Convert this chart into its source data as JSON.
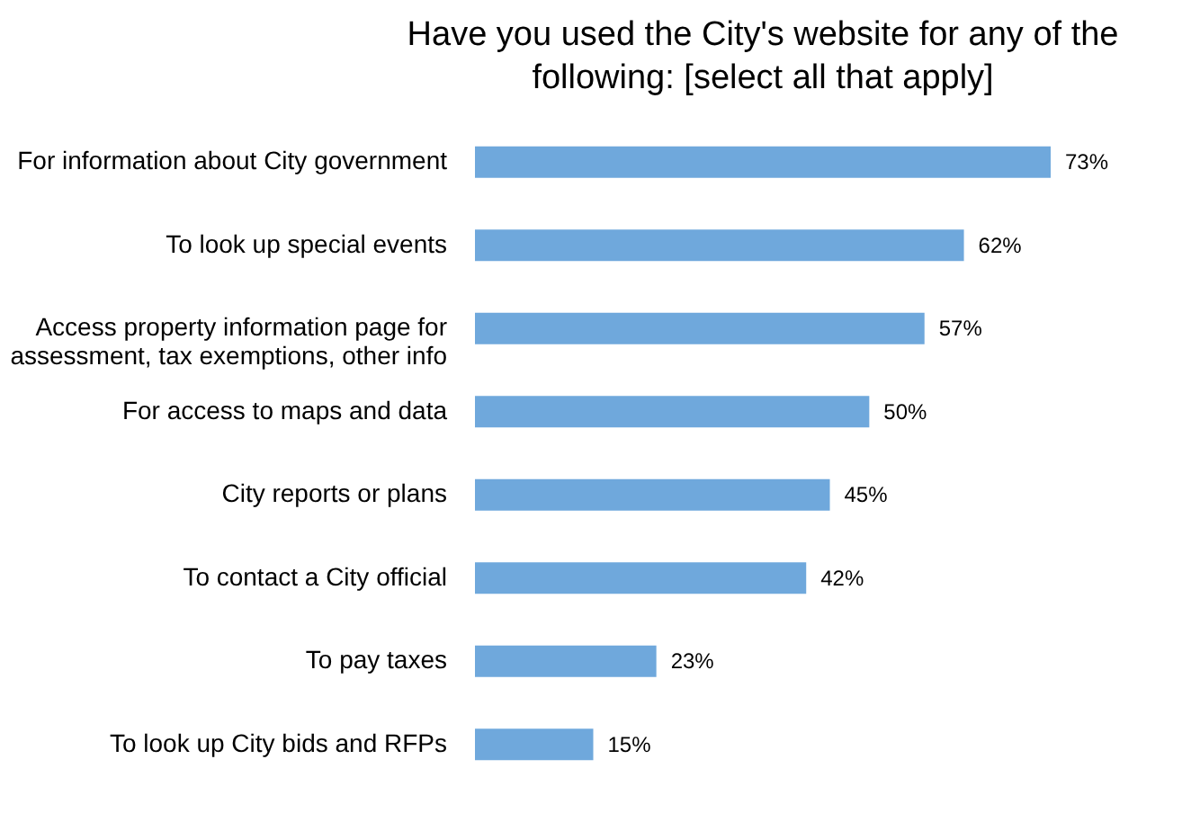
{
  "chart_data": {
    "type": "bar",
    "orientation": "horizontal",
    "title": "Have you used the City's website for any of the following: [select all that apply]",
    "categories": [
      "For information about City government",
      "To look up special events",
      "Access property information page for assessment, tax exemptions, other info",
      "For access to maps and data",
      "City reports or plans",
      "To contact a City official",
      "To pay taxes",
      "To look up City bids and RFPs"
    ],
    "values": [
      73,
      62,
      57,
      50,
      45,
      42,
      23,
      15
    ],
    "value_labels": [
      "73%",
      "62%",
      "57%",
      "50%",
      "45%",
      "42%",
      "23%",
      "15%"
    ],
    "color": "#6fa8dc"
  }
}
